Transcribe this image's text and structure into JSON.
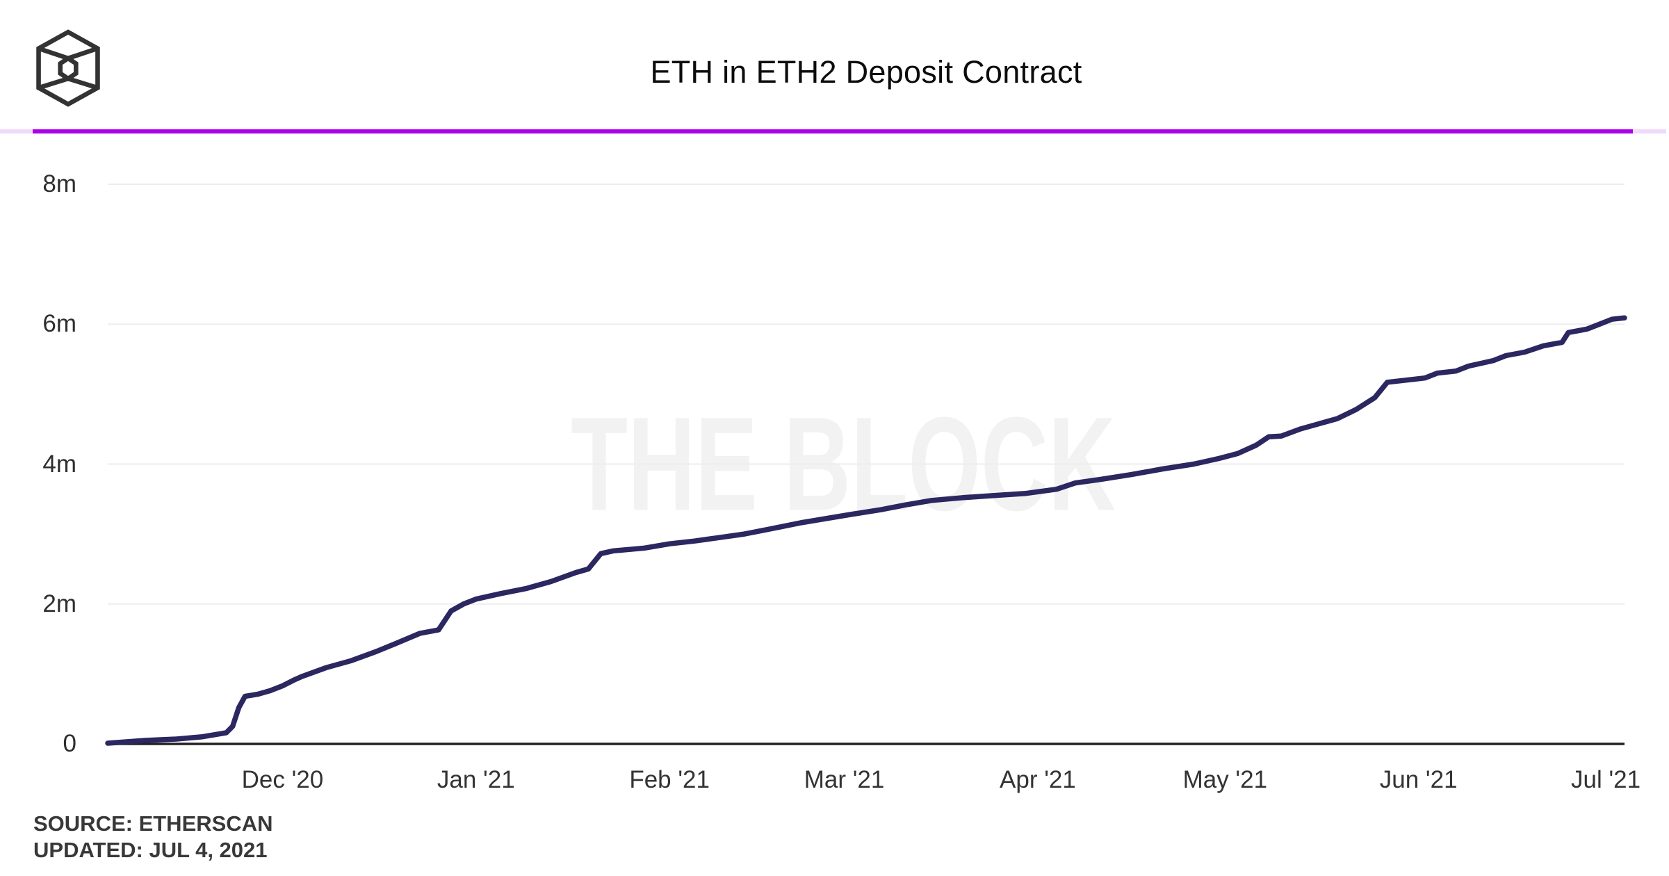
{
  "header": {
    "title": "ETH in ETH2 Deposit Contract",
    "logo_icon": "the-block-cube-logo",
    "rule_colors": {
      "main": "#ab00eb",
      "ends": "#f0d9fa"
    }
  },
  "watermark": "THE BLOCK",
  "footer": {
    "source": "SOURCE: ETHERSCAN",
    "updated": "UPDATED: JUL 4, 2021"
  },
  "chart_data": {
    "type": "line",
    "title": "ETH in ETH2 Deposit Contract",
    "unit": "ETH (millions)",
    "line_color": "#2b2760",
    "grid": "horizontal-only",
    "legend": "none",
    "x_axis": {
      "x_unit": "days from chart start (early Nov 2020) to Jul 4 2021",
      "total_days": 243,
      "ticks": [
        {
          "label": "Dec '20",
          "day": 28
        },
        {
          "label": "Jan '21",
          "day": 59
        },
        {
          "label": "Feb '21",
          "day": 90
        },
        {
          "label": "Mar '21",
          "day": 118
        },
        {
          "label": "Apr '21",
          "day": 149
        },
        {
          "label": "May '21",
          "day": 179
        },
        {
          "label": "Jun '21",
          "day": 210
        },
        {
          "label": "Jul '21",
          "day": 240
        }
      ]
    },
    "y_axis": {
      "max": 8,
      "ticks": [
        {
          "label": "0",
          "value": 0
        },
        {
          "label": "2m",
          "value": 2
        },
        {
          "label": "4m",
          "value": 4
        },
        {
          "label": "6m",
          "value": 6
        },
        {
          "label": "8m",
          "value": 8
        }
      ]
    },
    "series": [
      {
        "name": "ETH in ETH2 deposit contract",
        "points": [
          [
            0,
            0.01
          ],
          [
            6,
            0.05
          ],
          [
            11,
            0.07
          ],
          [
            15,
            0.1
          ],
          [
            17,
            0.13
          ],
          [
            19,
            0.16
          ],
          [
            20,
            0.25
          ],
          [
            21,
            0.52
          ],
          [
            22,
            0.68
          ],
          [
            24,
            0.71
          ],
          [
            26,
            0.76
          ],
          [
            28,
            0.83
          ],
          [
            30,
            0.92
          ],
          [
            31,
            0.96
          ],
          [
            35,
            1.09
          ],
          [
            39,
            1.19
          ],
          [
            43,
            1.32
          ],
          [
            46,
            1.43
          ],
          [
            50,
            1.58
          ],
          [
            53,
            1.63
          ],
          [
            55,
            1.9
          ],
          [
            57,
            2.0
          ],
          [
            59,
            2.07
          ],
          [
            63,
            2.15
          ],
          [
            67,
            2.22
          ],
          [
            71,
            2.32
          ],
          [
            75,
            2.45
          ],
          [
            77,
            2.5
          ],
          [
            79,
            2.72
          ],
          [
            81,
            2.76
          ],
          [
            86,
            2.8
          ],
          [
            90,
            2.86
          ],
          [
            94,
            2.9
          ],
          [
            98,
            2.95
          ],
          [
            102,
            3.0
          ],
          [
            106,
            3.07
          ],
          [
            111,
            3.16
          ],
          [
            115,
            3.22
          ],
          [
            119,
            3.28
          ],
          [
            124,
            3.35
          ],
          [
            128,
            3.42
          ],
          [
            132,
            3.48
          ],
          [
            137,
            3.52
          ],
          [
            142,
            3.55
          ],
          [
            147,
            3.58
          ],
          [
            152,
            3.64
          ],
          [
            155,
            3.73
          ],
          [
            159,
            3.78
          ],
          [
            164,
            3.85
          ],
          [
            169,
            3.93
          ],
          [
            174,
            4.0
          ],
          [
            178,
            4.08
          ],
          [
            181,
            4.15
          ],
          [
            184,
            4.27
          ],
          [
            186,
            4.39
          ],
          [
            188,
            4.4
          ],
          [
            191,
            4.5
          ],
          [
            193,
            4.55
          ],
          [
            195,
            4.6
          ],
          [
            197,
            4.65
          ],
          [
            200,
            4.78
          ],
          [
            203,
            4.95
          ],
          [
            205,
            5.17
          ],
          [
            207,
            5.19
          ],
          [
            211,
            5.23
          ],
          [
            213,
            5.3
          ],
          [
            216,
            5.33
          ],
          [
            218,
            5.4
          ],
          [
            222,
            5.48
          ],
          [
            224,
            5.55
          ],
          [
            227,
            5.6
          ],
          [
            230,
            5.69
          ],
          [
            233,
            5.74
          ],
          [
            234,
            5.88
          ],
          [
            237,
            5.93
          ],
          [
            239,
            6.0
          ],
          [
            241,
            6.07
          ],
          [
            243,
            6.09
          ]
        ]
      }
    ]
  }
}
